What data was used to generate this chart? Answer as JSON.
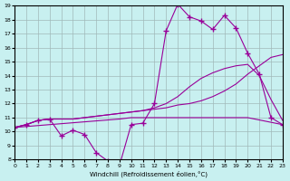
{
  "xlabel": "Windchill (Refroidissement éolien,°C)",
  "ylabel": "",
  "background_color": "#c8f0f0",
  "line_color": "#990099",
  "xlim": [
    0,
    23
  ],
  "ylim": [
    8,
    19
  ],
  "yticks": [
    8,
    9,
    10,
    11,
    12,
    13,
    14,
    15,
    16,
    17,
    18,
    19
  ],
  "xticks": [
    0,
    1,
    2,
    3,
    4,
    5,
    6,
    7,
    8,
    9,
    10,
    11,
    12,
    13,
    14,
    15,
    16,
    17,
    18,
    19,
    20,
    21,
    22,
    23
  ],
  "series1_x": [
    0,
    1,
    2,
    3,
    4,
    5,
    6,
    7,
    8,
    9,
    10,
    11,
    12,
    13,
    14,
    15,
    16,
    17,
    18,
    19,
    20,
    21,
    22,
    23
  ],
  "series1_y": [
    10.3,
    10.5,
    10.8,
    10.9,
    9.7,
    10.1,
    9.8,
    8.5,
    7.9,
    7.6,
    10.5,
    10.6,
    12.0,
    17.2,
    19.1,
    18.2,
    17.9,
    17.3,
    18.3,
    17.4,
    15.6,
    14.1,
    11.0,
    10.5
  ],
  "series2_x": [
    0,
    1,
    2,
    3,
    4,
    5,
    6,
    7,
    8,
    9,
    10,
    11,
    12,
    13,
    14,
    15,
    16,
    17,
    18,
    19,
    20,
    21,
    22,
    23
  ],
  "series2_y": [
    10.3,
    10.5,
    10.8,
    10.9,
    10.9,
    10.9,
    11.0,
    11.1,
    11.2,
    11.3,
    11.4,
    11.5,
    11.6,
    11.7,
    11.9,
    12.0,
    12.2,
    12.5,
    12.9,
    13.4,
    14.1,
    14.7,
    15.3,
    15.5
  ],
  "series3_x": [
    0,
    1,
    2,
    3,
    4,
    5,
    6,
    7,
    8,
    9,
    10,
    11,
    12,
    13,
    14,
    15,
    16,
    17,
    18,
    19,
    20,
    21,
    22,
    23
  ],
  "series3_y": [
    10.3,
    10.5,
    10.8,
    10.9,
    10.9,
    10.9,
    11.0,
    11.1,
    11.2,
    11.3,
    11.4,
    11.5,
    11.7,
    12.0,
    12.5,
    13.2,
    13.8,
    14.2,
    14.5,
    14.7,
    14.8,
    14.0,
    12.3,
    10.8
  ],
  "series4_x": [
    0,
    9,
    10,
    20,
    23
  ],
  "series4_y": [
    10.3,
    10.9,
    11.0,
    11.0,
    10.5
  ]
}
